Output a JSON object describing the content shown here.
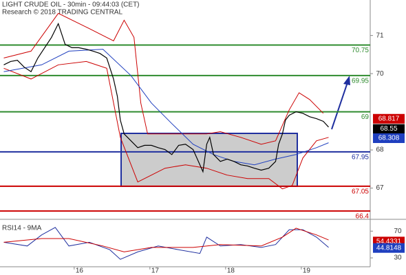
{
  "chart_data": {
    "type": "line",
    "title": "LIGHT CRUDE OIL - 30min - 09:44:03 (CET)",
    "subtitle": "Research © 2018 TRADING CENTRAL",
    "xlim": [
      15.02,
      19.91
    ],
    "xticks": [
      {
        "value": 16,
        "label": "16"
      },
      {
        "value": 17,
        "label": "17"
      },
      {
        "value": 18,
        "label": "18"
      },
      {
        "value": 19,
        "label": "19"
      }
    ],
    "ylim": [
      66.2,
      71.93
    ],
    "yticks": [
      67,
      68,
      70,
      71
    ],
    "price": {
      "color": "#000000",
      "x": [
        15.07,
        15.16,
        15.25,
        15.34,
        15.43,
        15.52,
        15.61,
        15.7,
        15.79,
        15.88,
        15.97,
        16.06,
        16.16,
        16.25,
        16.34,
        16.43,
        16.52,
        16.57,
        16.61,
        16.66,
        16.75,
        16.84,
        16.93,
        17.02,
        17.11,
        17.2,
        17.29,
        17.38,
        17.47,
        17.57,
        17.66,
        17.7,
        17.75,
        17.79,
        17.84,
        17.93,
        18.02,
        18.11,
        18.2,
        18.29,
        18.38,
        18.47,
        18.57,
        18.66,
        18.7,
        18.75,
        18.79,
        18.84,
        18.93,
        19.02,
        19.11,
        19.2,
        19.29,
        19.36
      ],
      "values": [
        70.23,
        70.32,
        70.35,
        70.17,
        70.05,
        70.41,
        70.68,
        70.95,
        71.31,
        70.77,
        70.68,
        70.68,
        70.64,
        70.59,
        70.53,
        70.41,
        69.86,
        69.41,
        68.78,
        68.42,
        68.24,
        68.06,
        68.12,
        68.12,
        68.06,
        68.01,
        67.88,
        68.12,
        68.15,
        68.01,
        67.61,
        67.43,
        68.15,
        68.33,
        67.88,
        67.7,
        67.76,
        67.7,
        67.61,
        67.58,
        67.52,
        67.47,
        67.52,
        67.7,
        68.15,
        68.42,
        68.78,
        68.91,
        69.0,
        68.96,
        68.87,
        68.82,
        68.75,
        68.6
      ]
    },
    "bands": [
      {
        "color": "#cc0000",
        "x": [
          15.07,
          15.43,
          15.79,
          16.16,
          16.52,
          16.66,
          16.79,
          16.88,
          16.97,
          17.2,
          17.47,
          17.75,
          17.93,
          18.2,
          18.47,
          18.66,
          18.84,
          18.97,
          19.11,
          19.29
        ],
        "values": [
          70.41,
          70.59,
          71.58,
          71.22,
          70.86,
          71.4,
          70.95,
          69.23,
          68.42,
          68.42,
          68.42,
          68.42,
          68.48,
          68.33,
          68.15,
          68.24,
          69.05,
          69.5,
          69.32,
          68.96
        ]
      },
      {
        "color": "#cc0000",
        "x": [
          15.07,
          15.43,
          15.79,
          16.16,
          16.43,
          16.61,
          16.84,
          17.2,
          17.47,
          17.75,
          18.02,
          18.29,
          18.57,
          18.75,
          18.88,
          19.02,
          19.2,
          19.36
        ],
        "values": [
          70.14,
          69.86,
          70.23,
          70.32,
          70.14,
          68.33,
          67.16,
          67.52,
          67.61,
          67.52,
          67.34,
          67.25,
          67.25,
          66.98,
          67.07,
          67.79,
          68.24,
          68.33
        ]
      },
      {
        "color": "#1f3fbf",
        "x": [
          15.07,
          15.57,
          15.93,
          16.38,
          16.75,
          17.02,
          17.29,
          17.57,
          17.84,
          18.11,
          18.38,
          18.66,
          18.93,
          19.2,
          19.36
        ],
        "values": [
          70.05,
          70.23,
          70.59,
          70.64,
          69.95,
          69.23,
          68.69,
          68.15,
          67.88,
          67.7,
          67.61,
          67.76,
          67.88,
          68.06,
          68.19
        ]
      }
    ],
    "levels": [
      {
        "value": 70.75,
        "color": "#2e8b2e"
      },
      {
        "value": 69.95,
        "color": "#2e8b2e"
      },
      {
        "value": 69,
        "color": "#2e8b2e"
      },
      {
        "value": 67.95,
        "color": "#1f2f9f"
      },
      {
        "value": 67.05,
        "color": "#cc0000"
      },
      {
        "value": 66.4,
        "color": "#cc0000"
      }
    ],
    "price_tags": [
      {
        "value": 68.817,
        "color": "#cc0000"
      },
      {
        "value": 68.55,
        "color": "#000000"
      },
      {
        "value": 68.308,
        "color": "#1f3fbf"
      }
    ],
    "rsi": {
      "label": "RSI14 - 9MA",
      "ylim": [
        16.7,
        86.7
      ],
      "yticks": [
        70,
        30
      ],
      "series": [
        {
          "color": "#1f2f9f",
          "x": [
            15.07,
            15.38,
            15.57,
            15.75,
            15.93,
            16.2,
            16.47,
            16.61,
            16.84,
            17.11,
            17.38,
            17.66,
            17.75,
            17.93,
            18.2,
            18.47,
            18.66,
            18.84,
            19.02,
            19.2,
            19.36
          ],
          "values": [
            53.3,
            47.8,
            64.4,
            75.6,
            47.8,
            53.3,
            42.2,
            27.8,
            38.9,
            47.8,
            42.2,
            36.7,
            61.1,
            47.8,
            50,
            45.6,
            50,
            72.2,
            72.2,
            61.1,
            45.6
          ]
        },
        {
          "color": "#cc0000",
          "x": [
            15.07,
            15.57,
            15.93,
            16.38,
            16.66,
            17.02,
            17.57,
            17.93,
            18.47,
            18.75,
            18.93,
            19.2,
            19.36
          ],
          "values": [
            53.3,
            58.9,
            58.9,
            47.8,
            38.9,
            45.6,
            45.6,
            50,
            47.8,
            61.1,
            74.4,
            64.4,
            56.7
          ]
        }
      ],
      "tags": [
        {
          "value": 54.4331,
          "color": "#cc0000"
        },
        {
          "value": 44.8148,
          "color": "#1f3fbf"
        }
      ]
    }
  }
}
